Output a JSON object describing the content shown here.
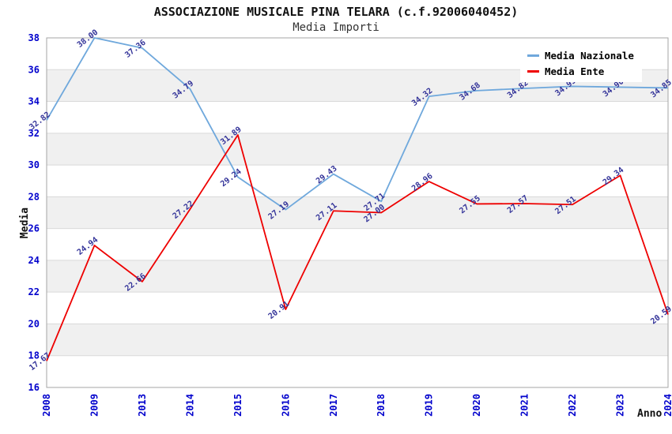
{
  "header": {
    "title": "ASSOCIAZIONE MUSICALE PINA TELARA (c.f.92006040452)",
    "subtitle": "Media Importi"
  },
  "axes": {
    "y_label": "Media",
    "x_label": "Anno"
  },
  "chart_data": {
    "type": "line",
    "title": "ASSOCIAZIONE MUSICALE PINA TELARA (c.f.92006040452)",
    "subtitle": "Media Importi",
    "xlabel": "Anno",
    "ylabel": "Media",
    "categories": [
      "2008",
      "2009",
      "2013",
      "2014",
      "2015",
      "2016",
      "2017",
      "2018",
      "2019",
      "2020",
      "2021",
      "2022",
      "2023",
      "2024"
    ],
    "series": [
      {
        "name": "Media Nazionale",
        "color": "#6fa8dc",
        "values": [
          32.82,
          38.0,
          37.36,
          34.79,
          29.24,
          27.19,
          29.43,
          27.71,
          34.32,
          34.68,
          34.82,
          34.95,
          34.9,
          34.85
        ],
        "labels": [
          "32.82",
          "38.00",
          "37.36",
          "34.79",
          "29.24",
          "27.19",
          "29.43",
          "27.71",
          "34.32",
          "34.68",
          "34.82",
          "34.95",
          "34.90",
          "34.85"
        ]
      },
      {
        "name": "Media Ente",
        "color": "#ee0000",
        "values": [
          17.67,
          24.94,
          22.66,
          27.22,
          31.89,
          20.91,
          27.11,
          27.0,
          28.96,
          27.55,
          27.57,
          27.51,
          29.34,
          20.59
        ],
        "labels": [
          "17.67",
          "24.94",
          "22.66",
          "27.22",
          "31.89",
          "20.91",
          "27.11",
          "27.00",
          "28.96",
          "27.55",
          "27.57",
          "27.51",
          "29.34",
          "20.59"
        ]
      }
    ],
    "ylim": [
      16,
      38
    ],
    "yticks": [
      38,
      36,
      34,
      32,
      30,
      28,
      26,
      24,
      22,
      20,
      18,
      16
    ],
    "grid": true,
    "legend_position": "top-right",
    "colors": {
      "tick_label": "#0000cc",
      "point_label": "#333399",
      "band": "#f0f0f0",
      "gridline": "#d9d9d9",
      "border": "#a6a6a6"
    }
  }
}
